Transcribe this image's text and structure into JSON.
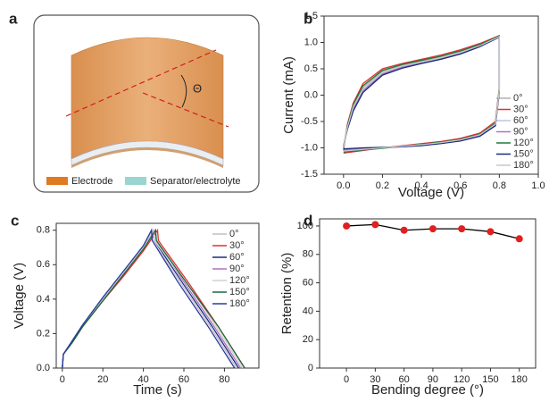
{
  "diagram": {
    "panel_label": "a",
    "angle_label": "Θ",
    "legend": [
      "Electrode",
      "Separator/electrolyte"
    ]
  },
  "chart_data": [
    {
      "type": "line",
      "panel_label": "b",
      "x_label": "Voltage (V)",
      "y_label": "Current (mA)",
      "xlim": [
        -0.1,
        1.0
      ],
      "ylim": [
        -1.5,
        1.5
      ],
      "xticks": [
        {
          "value": 0,
          "label": "0.0"
        },
        0.2,
        0.4,
        0.6,
        0.8,
        {
          "value": 1,
          "label": "1.0"
        }
      ],
      "yticks": [
        -1.5,
        {
          "value": -1,
          "label": "-1.0"
        },
        -0.5,
        {
          "value": 0,
          "label": "0.0"
        },
        0.5,
        {
          "value": 1,
          "label": "1.0"
        },
        1.5
      ],
      "x": [
        0,
        0.02,
        0.05,
        0.1,
        0.2,
        0.3,
        0.4,
        0.5,
        0.6,
        0.7,
        0.8,
        0.8,
        0.78,
        0.7,
        0.6,
        0.5,
        0.4,
        0.3,
        0.2,
        0.1,
        0
      ],
      "series": [
        {
          "name": "0°",
          "color": "#b0b0b0",
          "values": [
            -1.0,
            -0.6,
            -0.2,
            0.15,
            0.45,
            0.56,
            0.64,
            0.72,
            0.82,
            0.95,
            1.12,
            0.1,
            -0.55,
            -0.75,
            -0.85,
            -0.9,
            -0.94,
            -0.97,
            -1.0,
            -1.03,
            -1.07
          ]
        },
        {
          "name": "30°",
          "color": "#e03030",
          "values": [
            -1.05,
            -0.55,
            -0.15,
            0.22,
            0.5,
            0.6,
            0.68,
            0.76,
            0.86,
            0.98,
            1.13,
            0.15,
            -0.5,
            -0.72,
            -0.82,
            -0.88,
            -0.92,
            -0.96,
            -1.0,
            -1.05,
            -1.1
          ]
        },
        {
          "name": "60°",
          "color": "#b8c8e0",
          "values": [
            -0.98,
            -0.62,
            -0.25,
            0.1,
            0.42,
            0.54,
            0.62,
            0.7,
            0.8,
            0.94,
            1.1,
            0.1,
            -0.56,
            -0.76,
            -0.86,
            -0.91,
            -0.95,
            -0.98,
            -1.0,
            -1.02,
            -1.05
          ]
        },
        {
          "name": "90°",
          "color": "#b070c0",
          "values": [
            -0.97,
            -0.63,
            -0.27,
            0.08,
            0.4,
            0.53,
            0.61,
            0.69,
            0.79,
            0.93,
            1.1,
            0.08,
            -0.57,
            -0.77,
            -0.86,
            -0.91,
            -0.95,
            -0.98,
            -1.0,
            -1.02,
            -1.04
          ]
        },
        {
          "name": "120°",
          "color": "#1a7a3a",
          "values": [
            -1.0,
            -0.58,
            -0.18,
            0.18,
            0.47,
            0.58,
            0.66,
            0.74,
            0.84,
            0.96,
            1.12,
            0.12,
            -0.53,
            -0.74,
            -0.84,
            -0.89,
            -0.93,
            -0.97,
            -1.01,
            -1.04,
            -1.08
          ]
        },
        {
          "name": "150°",
          "color": "#1a2a80",
          "values": [
            -0.96,
            -0.65,
            -0.3,
            0.05,
            0.38,
            0.51,
            0.6,
            0.68,
            0.78,
            0.92,
            1.1,
            0.06,
            -0.58,
            -0.78,
            -0.87,
            -0.92,
            -0.96,
            -0.98,
            -0.99,
            -1.0,
            -1.02
          ]
        },
        {
          "name": "180°",
          "color": "#c8c8c8",
          "values": [
            -0.99,
            -0.61,
            -0.22,
            0.12,
            0.43,
            0.55,
            0.63,
            0.71,
            0.81,
            0.94,
            1.11,
            0.1,
            -0.55,
            -0.75,
            -0.85,
            -0.9,
            -0.94,
            -0.97,
            -1.0,
            -1.03,
            -1.06
          ]
        }
      ]
    },
    {
      "type": "line",
      "panel_label": "c",
      "x_label": "Time (s)",
      "y_label": "Voltage (V)",
      "xlim": [
        -3,
        97
      ],
      "ylim": [
        0,
        0.84
      ],
      "xticks": [
        0,
        20,
        40,
        60,
        80
      ],
      "yticks": [
        {
          "value": 0,
          "label": "0.0"
        },
        0.2,
        0.4,
        0.6,
        0.8
      ],
      "series": [
        {
          "name": "0°",
          "color": "#c0c0c0",
          "x": [
            0,
            0.5,
            5,
            10,
            20,
            30,
            40,
            44,
            44.4,
            58,
            73,
            86
          ],
          "values": [
            0,
            0.08,
            0.16,
            0.25,
            0.41,
            0.56,
            0.71,
            0.8,
            0.74,
            0.5,
            0.24,
            0
          ]
        },
        {
          "name": "30°",
          "color": "#e03030",
          "x": [
            0,
            0.5,
            5,
            10,
            20,
            30,
            40,
            47,
            47.4,
            62,
            77,
            90
          ],
          "values": [
            0,
            0.08,
            0.15,
            0.24,
            0.39,
            0.53,
            0.68,
            0.8,
            0.74,
            0.5,
            0.24,
            0
          ]
        },
        {
          "name": "60°",
          "color": "#1a2a80",
          "x": [
            0,
            0.5,
            5,
            10,
            20,
            30,
            40,
            45,
            45.4,
            59,
            74,
            87
          ],
          "values": [
            0,
            0.08,
            0.16,
            0.25,
            0.4,
            0.55,
            0.7,
            0.8,
            0.74,
            0.5,
            0.24,
            0
          ]
        },
        {
          "name": "90°",
          "color": "#b070c0",
          "x": [
            0,
            0.5,
            5,
            10,
            20,
            30,
            40,
            46,
            46.4,
            60,
            75,
            88
          ],
          "values": [
            0,
            0.08,
            0.15,
            0.24,
            0.4,
            0.54,
            0.69,
            0.8,
            0.74,
            0.5,
            0.24,
            0
          ]
        },
        {
          "name": "120°",
          "color": "#d0d0d0",
          "x": [
            0,
            0.5,
            5,
            10,
            20,
            30,
            40,
            45,
            45.4,
            61,
            76,
            89
          ],
          "values": [
            0,
            0.08,
            0.16,
            0.25,
            0.4,
            0.55,
            0.7,
            0.8,
            0.74,
            0.5,
            0.24,
            0
          ]
        },
        {
          "name": "150°",
          "color": "#1a6a3a",
          "x": [
            0,
            0.5,
            5,
            10,
            20,
            30,
            40,
            46,
            46.4,
            61,
            77,
            90
          ],
          "values": [
            0,
            0.08,
            0.15,
            0.24,
            0.39,
            0.54,
            0.69,
            0.8,
            0.74,
            0.5,
            0.24,
            0
          ]
        },
        {
          "name": "180°",
          "color": "#2a3aa0",
          "x": [
            0,
            0.5,
            5,
            10,
            20,
            30,
            40,
            44,
            44.4,
            57,
            72,
            85
          ],
          "values": [
            0,
            0.08,
            0.16,
            0.25,
            0.41,
            0.56,
            0.71,
            0.8,
            0.74,
            0.5,
            0.24,
            0
          ]
        }
      ]
    },
    {
      "type": "line",
      "panel_label": "d",
      "x_label": "Bending degree (°)",
      "y_label": "Retention (%)",
      "xlim": [
        -28,
        197
      ],
      "ylim": [
        0,
        105
      ],
      "xticks": [
        0,
        30,
        60,
        90,
        120,
        150,
        180
      ],
      "yticks": [
        0,
        20,
        40,
        60,
        80,
        100
      ],
      "markers": true,
      "x": [
        0,
        30,
        60,
        90,
        120,
        150,
        180
      ],
      "series": [
        {
          "color": "#000000",
          "marker_color": "#e02020",
          "values": [
            100,
            101,
            97,
            98,
            98,
            96,
            91
          ]
        }
      ]
    }
  ]
}
